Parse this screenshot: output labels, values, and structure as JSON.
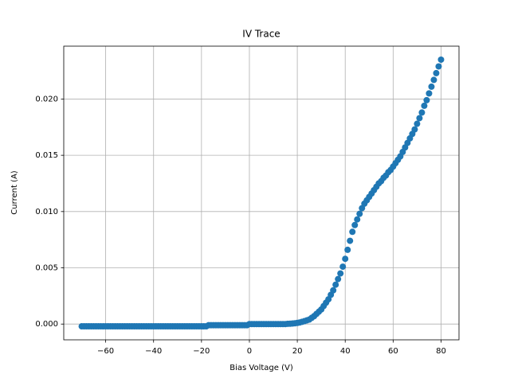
{
  "chart_data": {
    "type": "scatter",
    "title": "IV Trace",
    "xlabel": "Bias Voltage (V)",
    "ylabel": "Current (A)",
    "color": "#1f77b4",
    "grid": true,
    "xlim": [
      -77.5,
      87.5
    ],
    "ylim": [
      -0.0014,
      0.0247
    ],
    "xticks": [
      {
        "value": -60,
        "label": "−60"
      },
      {
        "value": -40,
        "label": "−40"
      },
      {
        "value": -20,
        "label": "−20"
      },
      0,
      20,
      40,
      60,
      80
    ],
    "yticks": [
      {
        "value": 0,
        "label": "0.000"
      },
      {
        "value": 0.005,
        "label": "0.005"
      },
      {
        "value": 0.01,
        "label": "0.010"
      },
      {
        "value": 0.015,
        "label": "0.015"
      },
      {
        "value": 0.02,
        "label": "0.020"
      }
    ],
    "x": [
      -70,
      -69,
      -68,
      -67,
      -66,
      -65,
      -64,
      -63,
      -62,
      -61,
      -60,
      -59,
      -58,
      -57,
      -56,
      -55,
      -54,
      -53,
      -52,
      -51,
      -50,
      -49,
      -48,
      -47,
      -46,
      -45,
      -44,
      -43,
      -42,
      -41,
      -40,
      -39,
      -38,
      -37,
      -36,
      -35,
      -34,
      -33,
      -32,
      -31,
      -30,
      -29,
      -28,
      -27,
      -26,
      -25,
      -24,
      -23,
      -22,
      -21,
      -20,
      -19,
      -18,
      -17,
      -16,
      -15,
      -14,
      -13,
      -12,
      -11,
      -10,
      -9,
      -8,
      -7,
      -6,
      -5,
      -4,
      -3,
      -2,
      -1,
      0,
      1,
      2,
      3,
      4,
      5,
      6,
      7,
      8,
      9,
      10,
      11,
      12,
      13,
      14,
      15,
      16,
      17,
      18,
      19,
      20,
      21,
      22,
      23,
      24,
      25,
      26,
      27,
      28,
      29,
      30,
      31,
      32,
      33,
      34,
      35,
      36,
      37,
      38,
      39,
      40,
      41,
      42,
      43,
      44,
      45,
      46,
      47,
      48,
      49,
      50,
      51,
      52,
      53,
      54,
      55,
      56,
      57,
      58,
      59,
      60,
      61,
      62,
      63,
      64,
      65,
      66,
      67,
      68,
      69,
      70,
      71,
      72,
      73,
      74,
      75,
      76,
      77,
      78,
      79,
      80
    ],
    "values": [
      -0.0002,
      -0.0002,
      -0.0002,
      -0.0002,
      -0.0002,
      -0.0002,
      -0.0002,
      -0.0002,
      -0.0002,
      -0.0002,
      -0.0002,
      -0.0002,
      -0.0002,
      -0.0002,
      -0.0002,
      -0.0002,
      -0.0002,
      -0.0002,
      -0.0002,
      -0.0002,
      -0.0002,
      -0.0002,
      -0.0002,
      -0.0002,
      -0.0002,
      -0.0002,
      -0.0002,
      -0.0002,
      -0.0002,
      -0.0002,
      -0.0002,
      -0.0002,
      -0.0002,
      -0.0002,
      -0.0002,
      -0.0002,
      -0.0002,
      -0.0002,
      -0.0002,
      -0.0002,
      -0.0002,
      -0.0002,
      -0.0002,
      -0.0002,
      -0.0002,
      -0.0002,
      -0.0002,
      -0.0002,
      -0.0002,
      -0.0002,
      -0.0002,
      -0.0002,
      -0.0002,
      -0.0001,
      -0.0001,
      -0.0001,
      -0.0001,
      -0.0001,
      -0.0001,
      -0.0001,
      -0.0001,
      -0.0001,
      -0.0001,
      -0.0001,
      -0.0001,
      -0.0001,
      -0.0001,
      -0.0001,
      -0.0001,
      -0.0001,
      0,
      0,
      0,
      0,
      0,
      0,
      0,
      0,
      0,
      0,
      0,
      0,
      0,
      0,
      0,
      0,
      2e-05,
      3e-05,
      5e-05,
      7e-05,
      0.0001,
      0.00014,
      0.0002,
      0.00026,
      0.00033,
      0.0004,
      0.00055,
      0.0007,
      0.0009,
      0.0011,
      0.0013,
      0.0016,
      0.0019,
      0.0022,
      0.0026,
      0.003,
      0.0035,
      0.004,
      0.0045,
      0.0051,
      0.0058,
      0.0066,
      0.0074,
      0.0082,
      0.0088,
      0.0093,
      0.0098,
      0.0103,
      0.0107,
      0.011,
      0.0113,
      0.0116,
      0.0119,
      0.0122,
      0.0125,
      0.0127,
      0.013,
      0.0132,
      0.0135,
      0.0137,
      0.014,
      0.0143,
      0.0146,
      0.0149,
      0.0153,
      0.0157,
      0.0161,
      0.0165,
      0.0169,
      0.0173,
      0.0178,
      0.0183,
      0.0188,
      0.0194,
      0.0199,
      0.0205,
      0.0211,
      0.0217,
      0.0223,
      0.0229,
      0.0235
    ]
  }
}
